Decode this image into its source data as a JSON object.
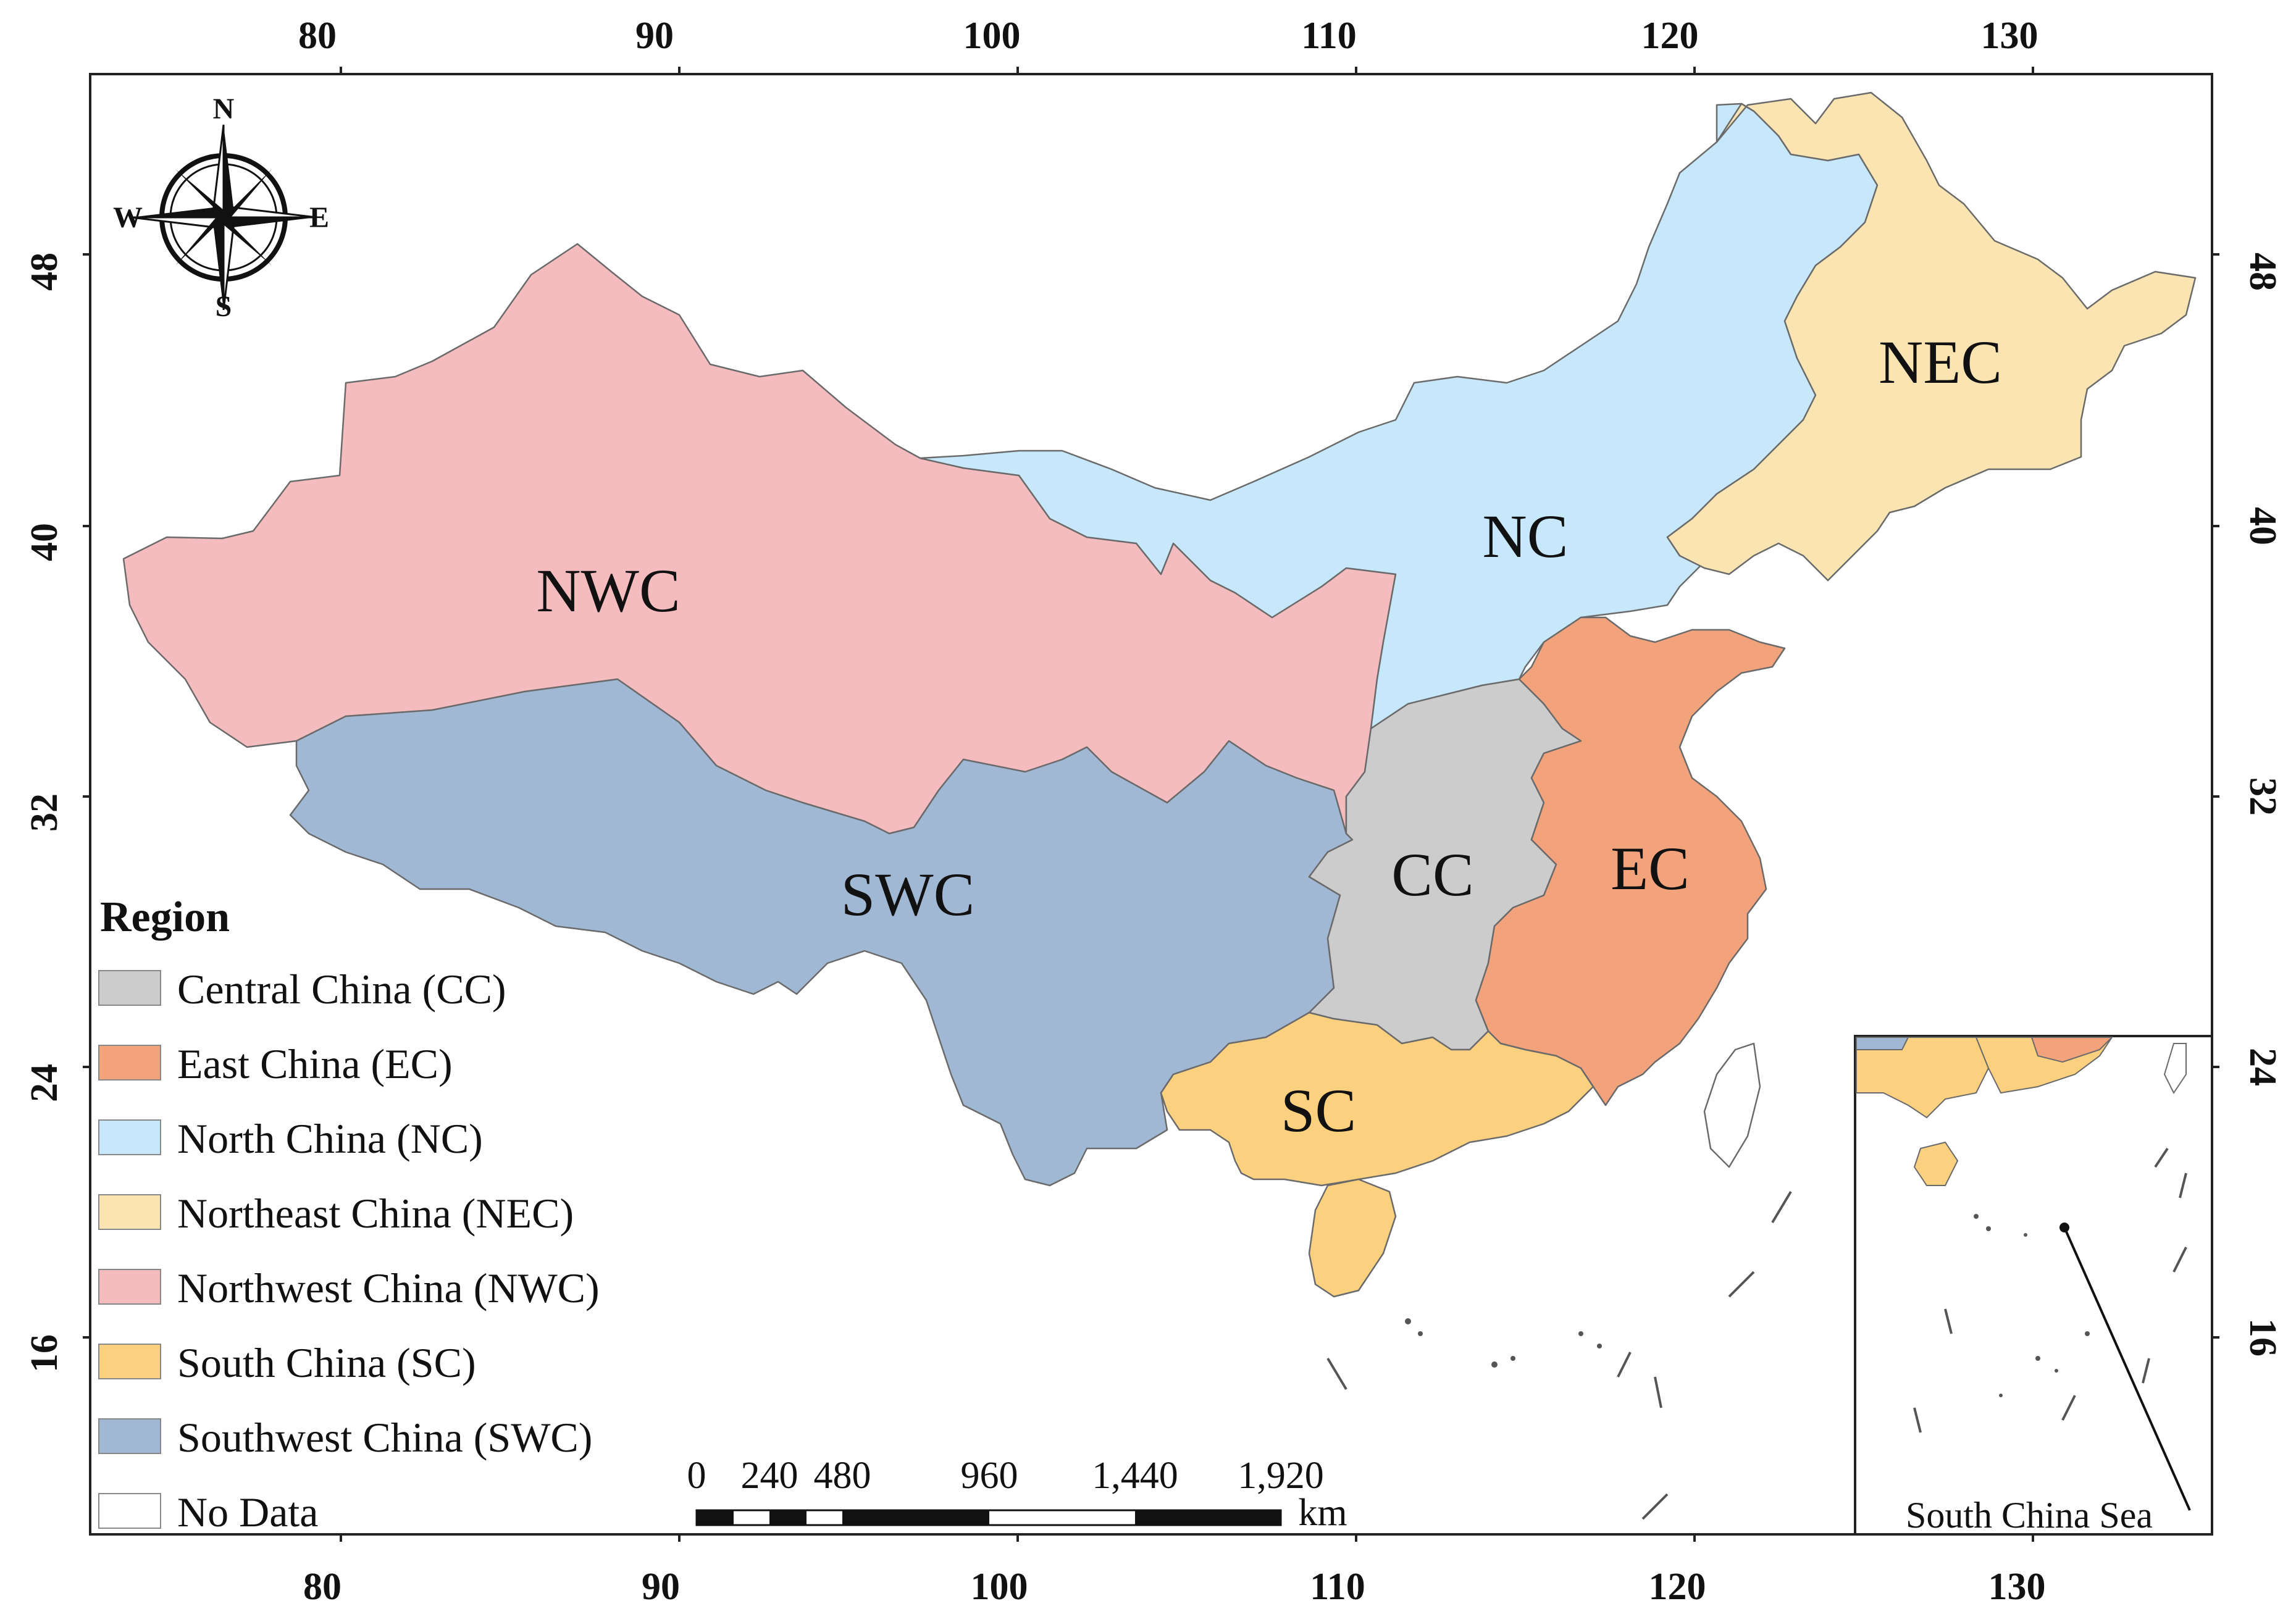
{
  "map": {
    "graticule": {
      "longitudes": [
        "80",
        "90",
        "100",
        "110",
        "120",
        "130"
      ],
      "latitudes": [
        "48",
        "40",
        "32",
        "24",
        "16"
      ]
    },
    "compass": {
      "n": "N",
      "s": "S",
      "e": "E",
      "w": "W"
    },
    "regions": {
      "cc": {
        "label": "CC",
        "color": "#cccccc"
      },
      "ec": {
        "label": "EC",
        "color": "#f2a37c"
      },
      "nc": {
        "label": "NC",
        "color": "#c6e8fa"
      },
      "nec": {
        "label": "NEC",
        "color": "#f9e4b2"
      },
      "nwc": {
        "label": "NWC",
        "color": "#f5bcbf"
      },
      "sc": {
        "label": "SC",
        "color": "#fbd07f"
      },
      "swc": {
        "label": "SWC",
        "color": "#a1b8d4"
      }
    },
    "legend": {
      "title": "Region",
      "items": [
        {
          "label": "Central China (CC)",
          "color": "#cccccc"
        },
        {
          "label": "East China (EC)",
          "color": "#f2a37c"
        },
        {
          "label": "North China (NC)",
          "color": "#c6e8fa"
        },
        {
          "label": "Northeast China (NEC)",
          "color": "#f9e4b2"
        },
        {
          "label": "Northwest China (NWC)",
          "color": "#f5bcbf"
        },
        {
          "label": "South China (SC)",
          "color": "#fbd07f"
        },
        {
          "label": "Southwest China (SWC)",
          "color": "#a1b8d4"
        },
        {
          "label": "No Data",
          "color": "#ffffff"
        }
      ]
    },
    "scalebar": {
      "ticks": [
        "0",
        "240",
        "480",
        "960",
        "1,440",
        "1,920"
      ],
      "unit": "km"
    },
    "inset": {
      "label": "South China Sea"
    }
  }
}
